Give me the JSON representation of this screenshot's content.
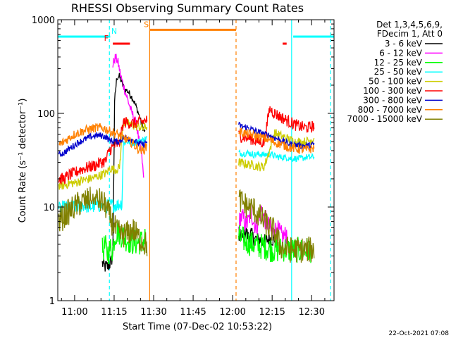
{
  "chart_data": {
    "type": "line",
    "title": "RHESSI Observing Summary Count Rates",
    "xlabel": "Start Time (07-Dec-02 10:53:22)",
    "ylabel": "Count Rate (s⁻¹ detector⁻¹)",
    "xlim_minutes": [
      -6.4,
      98.5
    ],
    "ylim": [
      1,
      1000
    ],
    "yscale": "log",
    "x_ticks": [
      {
        "label": "11:00",
        "t": 0
      },
      {
        "label": "11:15",
        "t": 15
      },
      {
        "label": "11:30",
        "t": 30
      },
      {
        "label": "11:45",
        "t": 45
      },
      {
        "label": "12:00",
        "t": 60
      },
      {
        "label": "12:15",
        "t": 75
      },
      {
        "label": "12:30",
        "t": 90
      }
    ],
    "y_ticks": [
      {
        "label": "1",
        "v": 1
      },
      {
        "label": "10",
        "v": 10
      },
      {
        "label": "100",
        "v": 100
      },
      {
        "label": "1000",
        "v": 1000
      }
    ],
    "legend_header": [
      "Det 1,3,4,5,6,9,",
      "FDecim 1, Att 0"
    ],
    "legend_placement": "right",
    "gap_minutes": [
      28.5,
      61.3
    ],
    "series": [
      {
        "name": "3 - 6 keV",
        "color": "#000000",
        "x": [
          10.5,
          11.5,
          12.5,
          13.5,
          14.5,
          15.2,
          16,
          17,
          18,
          19,
          20,
          21,
          22,
          23,
          24,
          25,
          26,
          26.8,
          62.3,
          63,
          64,
          65,
          66,
          67,
          68,
          70,
          72,
          74,
          76
        ],
        "y": [
          2.5,
          2.3,
          2.3,
          2.5,
          3,
          140,
          240,
          250,
          210,
          180,
          175,
          160,
          145,
          125,
          105,
          85,
          70,
          62,
          4.6,
          5,
          4.5,
          5.5,
          4.8,
          5.2,
          4.6,
          4.5,
          4.3,
          4.6,
          4.4
        ]
      },
      {
        "name": "6 - 12 keV",
        "color": "#ff00ff",
        "x": [
          14.5,
          15.5,
          16.5,
          17.5,
          18.5,
          19.5,
          20.5,
          21.5,
          22.5,
          23.5,
          24.5,
          25.5,
          26.2,
          62.3,
          63,
          64,
          65,
          66,
          67,
          68,
          69,
          70,
          71,
          72,
          73,
          74,
          75,
          76,
          77,
          78,
          79,
          80,
          81
        ],
        "y": [
          330,
          400,
          350,
          250,
          200,
          160,
          130,
          105,
          90,
          75,
          50,
          35,
          20,
          6,
          8,
          7.5,
          6.5,
          7,
          9,
          7,
          6,
          8,
          9.5,
          7.5,
          7,
          6,
          5.2,
          5.6,
          5.8,
          5.2,
          4.8,
          5,
          5.5
        ]
      },
      {
        "name": "12 - 25 keV",
        "color": "#00ff00",
        "x": [
          10.5,
          11.5,
          12.5,
          13.5,
          14.5,
          15.2,
          16.5,
          18,
          20,
          22,
          24,
          26,
          27,
          62.3,
          64,
          66,
          68,
          70,
          72,
          74,
          76,
          78,
          80,
          82,
          84,
          86,
          88,
          90
        ],
        "y": [
          3.4,
          3.8,
          3.2,
          3.6,
          3.5,
          5,
          5.5,
          5,
          4.5,
          4.2,
          4.2,
          4.3,
          5,
          4.8,
          4.5,
          4.2,
          4,
          3.8,
          3.8,
          3.6,
          3.5,
          3.5,
          3.6,
          3.4,
          3.5,
          3.4,
          3.5,
          3.5
        ]
      },
      {
        "name": "25 - 50 keV",
        "color": "#00ffff",
        "x": [
          -6,
          -3,
          0,
          3,
          6,
          9,
          11.5,
          14,
          16,
          18,
          18.5,
          20,
          22,
          24,
          26,
          27.5,
          62.3,
          64,
          66,
          68,
          70,
          72,
          74,
          76,
          78,
          80,
          82,
          84,
          86,
          88,
          90,
          91
        ],
        "y": [
          9.5,
          10,
          10,
          10.5,
          10,
          10.5,
          10,
          10.5,
          10.5,
          11,
          48,
          50,
          48,
          50,
          52,
          55,
          38,
          37,
          38,
          36,
          37,
          36,
          37,
          35,
          34,
          34,
          33,
          33,
          33,
          34,
          34,
          35
        ]
      },
      {
        "name": "50 - 100 keV",
        "color": "#cccc00",
        "x": [
          -6,
          -4,
          -2,
          0,
          2,
          4,
          6,
          8,
          10,
          12,
          13.5,
          15,
          17,
          18.5,
          20,
          22,
          24,
          26,
          27.5,
          62.3,
          64,
          66,
          68,
          70,
          72,
          74,
          76,
          78,
          80,
          82,
          84,
          86,
          88,
          90,
          91
        ],
        "y": [
          17,
          17,
          18,
          18,
          19,
          19.5,
          20,
          21,
          22,
          23,
          26,
          25,
          26,
          80,
          78,
          75,
          72,
          70,
          72,
          30,
          29,
          28.5,
          28,
          27,
          27,
          40,
          62,
          58,
          55,
          52,
          50,
          49,
          50,
          52,
          55
        ]
      },
      {
        "name": "100 - 300 keV",
        "color": "#ff0000",
        "x": [
          -6,
          -4,
          -2,
          0,
          2,
          4,
          6,
          8,
          10,
          12,
          13,
          15,
          17,
          18.5,
          20,
          22,
          24,
          26,
          27.5,
          62.3,
          64,
          66,
          68,
          70,
          72,
          74,
          76,
          78,
          80,
          82,
          84,
          86,
          88,
          90,
          91
        ],
        "y": [
          20,
          20,
          22,
          23,
          25,
          26,
          27,
          28,
          30,
          31,
          40,
          45,
          48,
          80,
          80,
          78,
          80,
          82,
          85,
          58,
          56,
          55,
          52,
          50,
          49,
          112,
          100,
          92,
          86,
          80,
          75,
          72,
          70,
          72,
          75
        ]
      },
      {
        "name": "300 - 800 keV",
        "color": "#0000cc",
        "x": [
          -6,
          -4,
          -2,
          0,
          2,
          4,
          6,
          8,
          10,
          12,
          13,
          15,
          17,
          18.5,
          20,
          22,
          24,
          26,
          27.5,
          62.3,
          64,
          66,
          68,
          70,
          72,
          74,
          76,
          78,
          80,
          82,
          84,
          86,
          88,
          90,
          91
        ],
        "y": [
          36,
          38,
          42,
          46,
          50,
          53,
          56,
          58,
          58,
          56,
          52,
          50,
          50,
          55,
          55,
          52,
          48,
          46,
          50,
          75,
          72,
          70,
          66,
          63,
          60,
          58,
          55,
          52,
          49,
          47,
          46,
          45,
          45,
          46,
          47
        ]
      },
      {
        "name": "800 - 7000 keV",
        "color": "#ff8000",
        "x": [
          -6,
          -4,
          -2,
          0,
          2,
          4,
          6,
          8,
          10,
          12,
          13,
          15,
          17,
          18.5,
          20,
          22,
          24,
          26,
          27.5,
          62.3,
          64,
          66,
          68,
          70,
          72,
          74,
          76,
          78,
          80,
          82,
          84,
          86,
          88,
          90,
          91
        ],
        "y": [
          46,
          50,
          55,
          60,
          63,
          66,
          68,
          70,
          70,
          68,
          65,
          62,
          58,
          55,
          52,
          48,
          42,
          40,
          45,
          65,
          62,
          60,
          58,
          56,
          54,
          52,
          49,
          47,
          45,
          43,
          42,
          41,
          41,
          42,
          43
        ]
      },
      {
        "name": "7000 - 15000 keV",
        "color": "#808000",
        "x": [
          -6,
          -4,
          -2,
          0,
          2,
          4,
          6,
          8,
          10,
          12,
          14,
          16,
          18,
          20,
          22,
          24,
          26,
          27.5,
          62.3,
          64,
          66,
          68,
          70,
          72,
          74,
          76,
          78,
          80,
          82,
          84,
          86,
          88,
          90,
          91
        ],
        "y": [
          7,
          8,
          9,
          10,
          11,
          11.5,
          12,
          12,
          11.5,
          10,
          7,
          5.5,
          5,
          5.2,
          5.8,
          4.8,
          4.2,
          3.9,
          12,
          11,
          10,
          9.5,
          8,
          7,
          6,
          5.5,
          3.8,
          3.6,
          3.5,
          3.5,
          3.5,
          3.5,
          3.5,
          3.5
        ]
      }
    ],
    "flags": [
      {
        "name": "N",
        "color": "#00ffff",
        "label_t": 15,
        "value": 660,
        "segments": [
          [
            -6.4,
            13.5
          ],
          [
            83,
            98.5
          ]
        ]
      },
      {
        "name": "F",
        "color": "#ff0000",
        "label_t": 12,
        "value": 555,
        "segments": [
          [
            14.5,
            21
          ],
          [
            79,
            80.5
          ]
        ]
      },
      {
        "name": "S",
        "color": "#ff8000",
        "label_t": 27.2,
        "value": 780,
        "segments": [
          [
            28.5,
            61.3
          ]
        ]
      }
    ],
    "vlines": [
      {
        "t": 13.2,
        "color": "#00ffff",
        "style": "dashed"
      },
      {
        "t": 28.5,
        "color": "#ff8000",
        "style": "solid"
      },
      {
        "t": 61.3,
        "color": "#ff8000",
        "style": "dashed"
      },
      {
        "t": 82.4,
        "color": "#00ffff",
        "style": "solid"
      },
      {
        "t": 97.2,
        "color": "#00ffff",
        "style": "dashed"
      }
    ],
    "footer": "22-Oct-2021 07:08"
  }
}
